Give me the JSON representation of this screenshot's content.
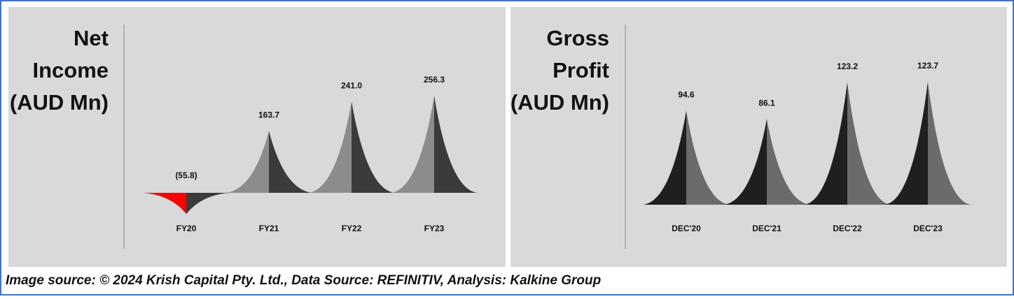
{
  "chart_data": [
    {
      "type": "pyramid",
      "title": [
        "Net",
        "Income",
        "(AUD Mn)"
      ],
      "categories": [
        "FY20",
        "FY21",
        "FY22",
        "FY23"
      ],
      "values": [
        -55.8,
        163.7,
        241.0,
        256.3
      ],
      "value_labels": [
        "(55.8)",
        "163.7",
        "241.0",
        "256.3"
      ],
      "colors": [
        "#8c8c8c",
        "#3b3b3b"
      ],
      "negative_color": "#ff0000"
    },
    {
      "type": "pyramid",
      "title": [
        "Gross",
        "Profit",
        "(AUD Mn)"
      ],
      "categories": [
        "DEC'20",
        "DEC'21",
        "DEC'22",
        "DEC'23"
      ],
      "values": [
        94.6,
        86.1,
        123.2,
        123.7
      ],
      "colors": [
        "#1f1f1f",
        "#6b6b6b"
      ]
    }
  ],
  "caption": "Image source: © 2024 Krish Capital Pty. Ltd., Data Source: REFINITIV, Analysis: Kalkine Group"
}
